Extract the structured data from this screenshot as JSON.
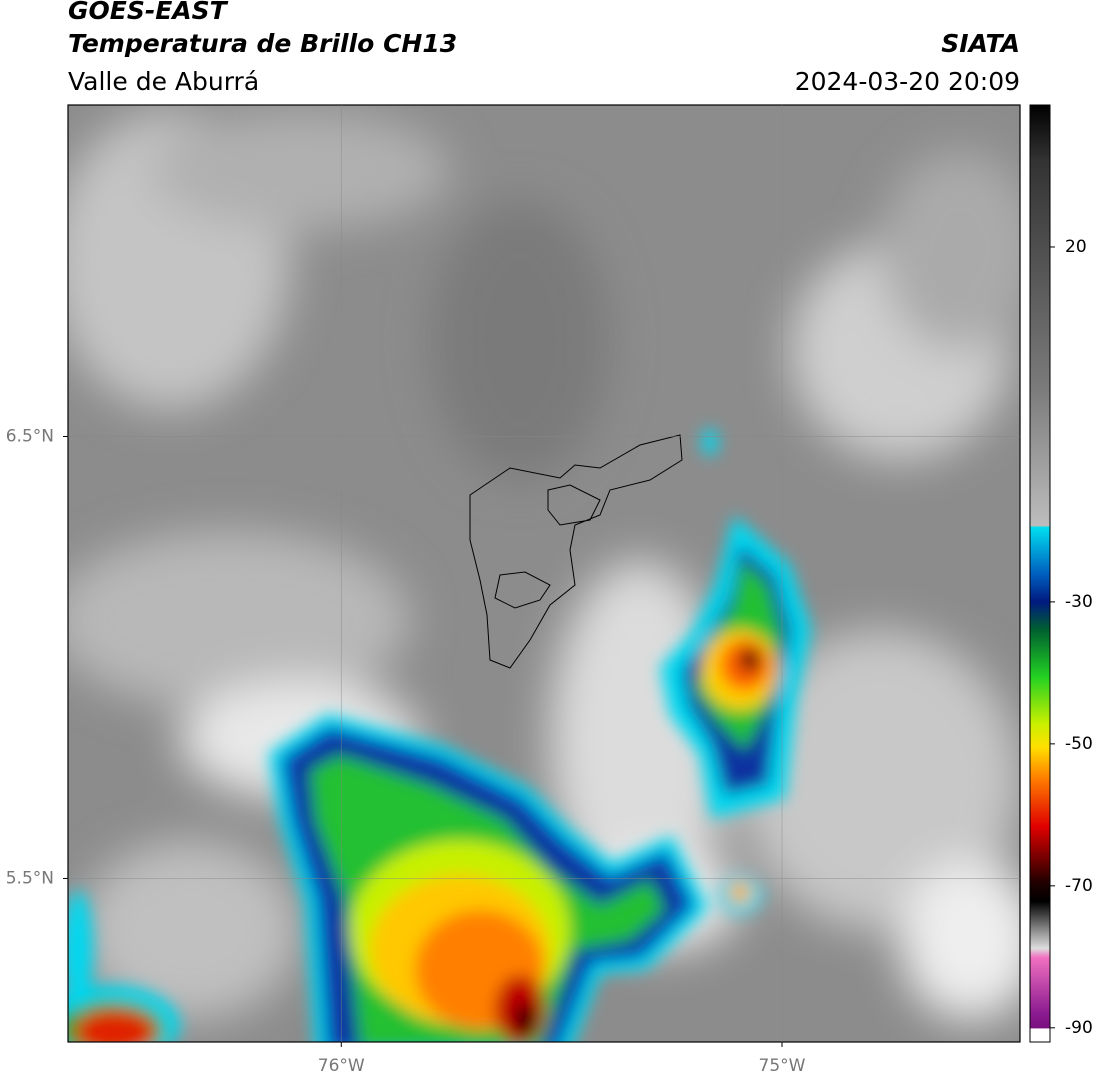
{
  "header": {
    "title": "GOES-EAST",
    "subtitle": "Temperatura de Brillo CH13",
    "region": "Valle de Aburrá",
    "source": "SIATA",
    "datetime": "2024-03-20 20:09"
  },
  "map": {
    "xlim": [
      -76.62,
      -74.46
    ],
    "ylim": [
      5.13,
      7.25
    ],
    "xticks": [
      {
        "value": -76,
        "label": "76°W"
      },
      {
        "value": -75,
        "label": "75°W"
      }
    ],
    "yticks": [
      {
        "value": 6.5,
        "label": "6.5°N"
      },
      {
        "value": 5.5,
        "label": "5.5°N"
      }
    ],
    "grid": true
  },
  "colorbar": {
    "ylim": [
      -92,
      40
    ],
    "yticks": [
      20,
      -30,
      -50,
      -70,
      -90
    ]
  }
}
